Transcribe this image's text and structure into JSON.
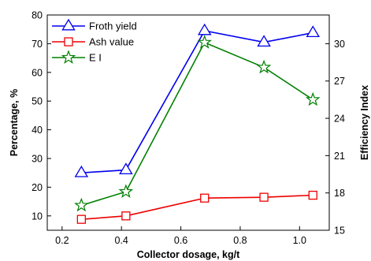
{
  "chart_data": {
    "type": "line",
    "xlabel": "Collector dosage, kg/t",
    "ylabel_left": "Percentage, %",
    "ylabel_right": "Efficiency Index",
    "xlim": [
      0.15,
      1.1
    ],
    "ylim_left": [
      5,
      80
    ],
    "ylim_right": [
      15,
      32.31
    ],
    "x_ticks": [
      0.2,
      0.4,
      0.6,
      0.8,
      1.0
    ],
    "x_tick_labels": [
      "0.2",
      "0.4",
      "0.6",
      "0.8",
      "1.0"
    ],
    "y_left_ticks": [
      10,
      20,
      30,
      40,
      50,
      60,
      70,
      80
    ],
    "y_left_tick_labels": [
      "10",
      "20",
      "30",
      "40",
      "50",
      "60",
      "70",
      "80"
    ],
    "y_right_ticks": [
      15,
      18,
      21,
      24,
      27,
      30
    ],
    "y_right_tick_labels": [
      "15",
      "18",
      "21",
      "24",
      "27",
      "30"
    ],
    "grid": false,
    "legend_position": "top-left",
    "series": [
      {
        "name": "Froth yield",
        "axis": "left",
        "marker": "triangle",
        "color": "#0000ee",
        "x": [
          0.265,
          0.415,
          0.68,
          0.88,
          1.045
        ],
        "y": [
          25,
          26,
          74.5,
          70.5,
          73.8
        ]
      },
      {
        "name": "Ash value",
        "axis": "left",
        "marker": "square",
        "color": "#ee0000",
        "x": [
          0.265,
          0.415,
          0.68,
          0.88,
          1.045
        ],
        "y": [
          8.8,
          10,
          16.2,
          16.5,
          17.2
        ]
      },
      {
        "name": "E I",
        "axis": "right",
        "marker": "star",
        "color": "#008000",
        "x": [
          0.265,
          0.415,
          0.68,
          0.88,
          1.045
        ],
        "y": [
          17,
          18.1,
          30.1,
          28.1,
          25.5
        ]
      }
    ]
  }
}
